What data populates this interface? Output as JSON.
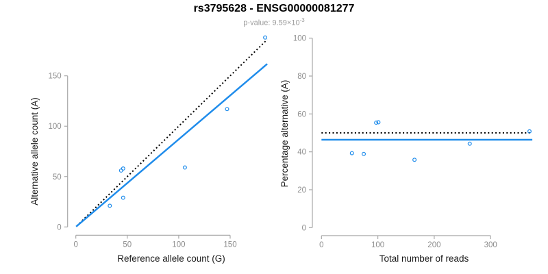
{
  "header": {
    "title": "rs3795628 - ENSG00000081277",
    "subtitle_main": "p-value: 9.59×10",
    "subtitle_exponent": "-3"
  },
  "colors": {
    "accent_blue": "#1f8ceb",
    "dotted_black": "#000000",
    "axis_gray": "#a8a8a8",
    "tick_label_gray": "#8c8c8c",
    "axis_title_black": "#1a1a1a",
    "subtitle_gray": "#9a9a9a",
    "background": "#ffffff"
  },
  "chart_data": [
    {
      "type": "scatter",
      "name": "allele-counts-scatter",
      "xlabel": "Reference allele count (G)",
      "ylabel": "Alternative allele count (A)",
      "xticks": [
        0,
        50,
        100,
        150
      ],
      "yticks": [
        0,
        50,
        100,
        150
      ],
      "xlim": [
        0,
        186
      ],
      "ylim": [
        0,
        193
      ],
      "grid": false,
      "legend": null,
      "points": [
        [
          33,
          21
        ],
        [
          44,
          56
        ],
        [
          46,
          58
        ],
        [
          46,
          29
        ],
        [
          106,
          59
        ],
        [
          147,
          117
        ],
        [
          184,
          188
        ]
      ],
      "lines": [
        {
          "name": "identity-line",
          "style": "dotted",
          "color": "dotted_black",
          "x1": 1,
          "y1": 1,
          "x2": 186,
          "y2": 186
        },
        {
          "name": "regression-line",
          "style": "solid",
          "color": "accent_blue",
          "x1": 0.3,
          "y1": 0.3,
          "x2": 186,
          "y2": 161.8
        }
      ]
    },
    {
      "type": "scatter",
      "name": "percentage-vs-reads-scatter",
      "xlabel": "Total number of reads",
      "ylabel": "Percentage alternative (A)",
      "xticks": [
        0,
        100,
        200,
        300
      ],
      "yticks": [
        0,
        20,
        40,
        60,
        80,
        100
      ],
      "xlim": [
        0,
        380
      ],
      "ylim": [
        0,
        100
      ],
      "grid": false,
      "legend": null,
      "points": [
        [
          54,
          39.3
        ],
        [
          75,
          38.9
        ],
        [
          97,
          55.4
        ],
        [
          101,
          55.6
        ],
        [
          165,
          35.8
        ],
        [
          263,
          44.3
        ],
        [
          369,
          50.8
        ]
      ],
      "lines": [
        {
          "name": "expected-50pct-line",
          "style": "dotted",
          "color": "dotted_black",
          "x1": 0,
          "y1": 50,
          "x2": 374,
          "y2": 50
        },
        {
          "name": "mean-percentage-line",
          "style": "solid",
          "color": "accent_blue",
          "x1": 0,
          "y1": 46.4,
          "x2": 374,
          "y2": 46.4
        }
      ]
    }
  ]
}
